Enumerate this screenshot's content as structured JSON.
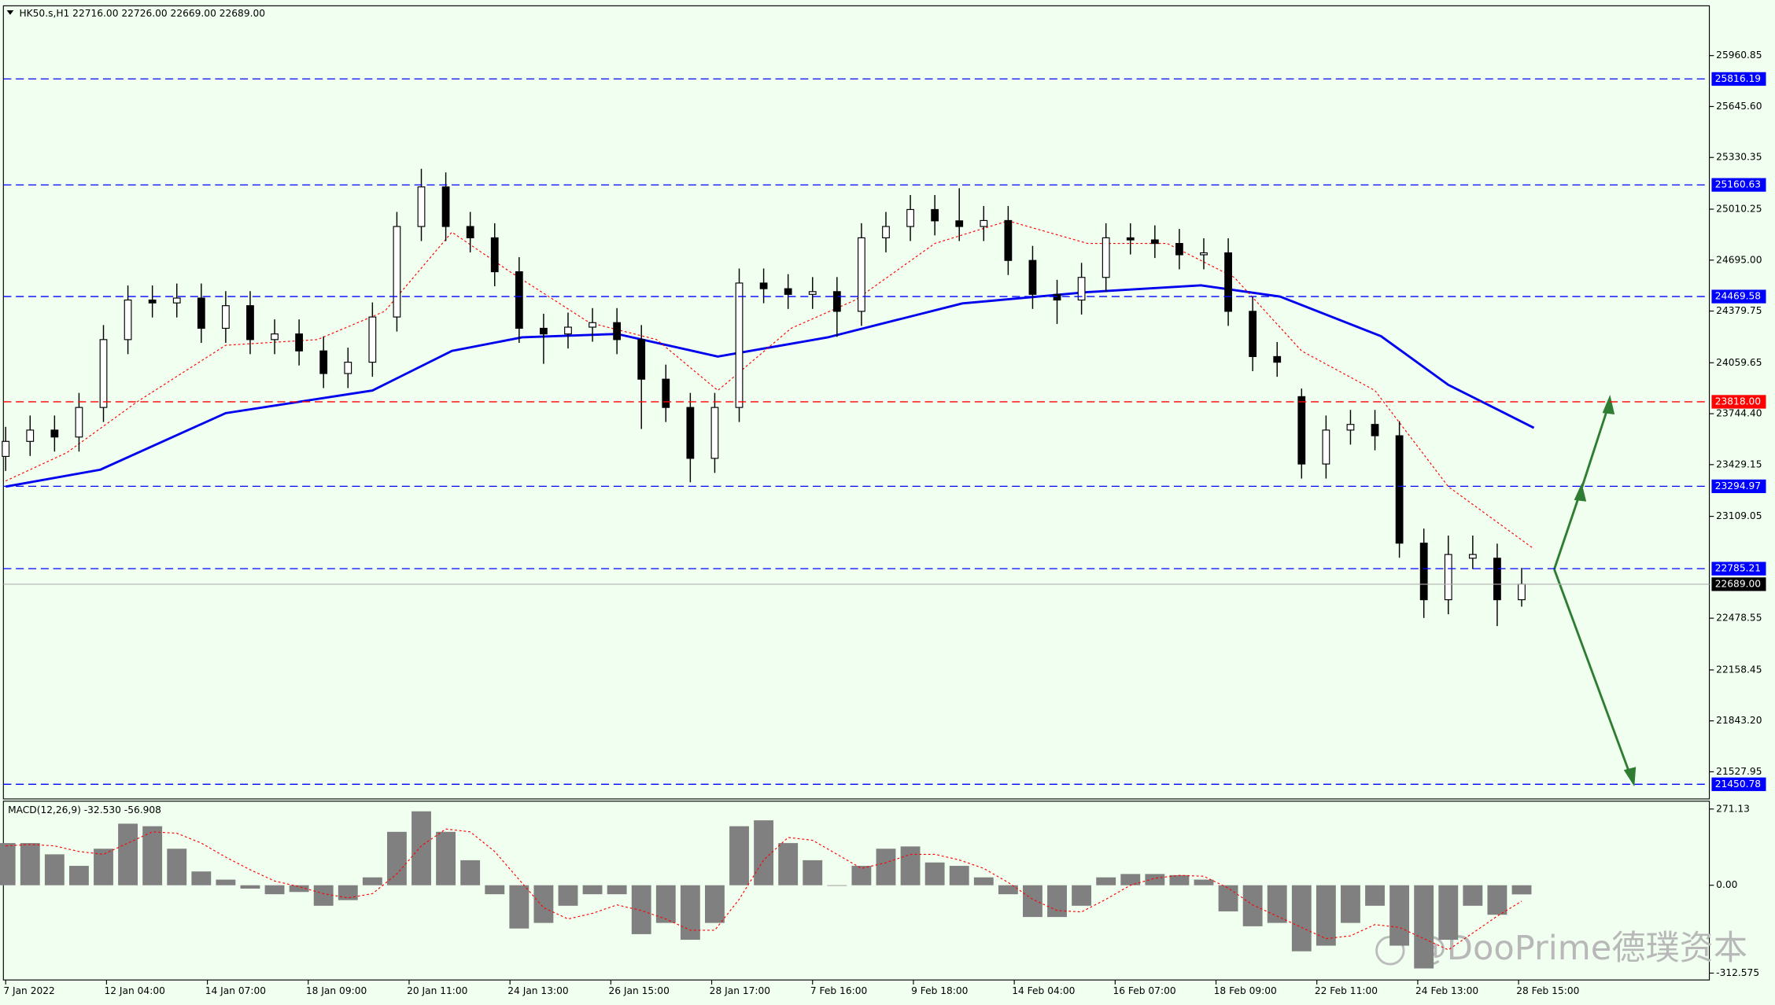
{
  "chart_data": [
    {
      "type": "candlestick",
      "title": "HK50.s,H1  22716.00 22726.00 22669.00 22689.00",
      "xlim": [
        0,
        500
      ],
      "ylim": [
        21360,
        26269
      ],
      "yticks": [
        25960.85,
        {
          "value": 25645.6,
          "label": "25645.60"
        },
        25330.35,
        25010.25,
        {
          "value": 24695,
          "label": "24695.00"
        },
        24379.75,
        24059.65,
        {
          "value": 23744.4,
          "label": "23744.40"
        },
        23429.15,
        23109.05,
        22478.55,
        22158.45,
        {
          "value": 21843.2,
          "label": "21843.20"
        },
        21527.95
      ],
      "grid": false,
      "x": [
        0,
        8,
        16,
        24,
        32,
        40,
        48,
        56,
        64,
        72,
        80,
        88,
        96,
        104,
        112,
        120,
        128,
        136,
        144,
        152,
        160,
        168,
        176,
        184,
        192,
        200,
        208,
        216,
        224,
        232,
        240,
        248,
        256,
        264,
        272,
        280,
        288,
        296,
        304,
        312,
        320,
        328,
        336,
        344,
        352,
        360,
        368,
        376,
        384,
        392,
        400,
        408,
        416,
        424,
        432,
        440,
        448,
        456,
        464,
        472,
        480,
        488,
        496
      ],
      "open": [
        23480,
        23573,
        23643,
        23600,
        23783,
        24203,
        24448,
        24430,
        24460,
        24273,
        24413,
        24203,
        24238,
        24133,
        23993,
        24063,
        24343,
        24903,
        25148,
        24903,
        24833,
        24623,
        24273,
        24238,
        24280,
        24308,
        24203,
        23958,
        23783,
        23468,
        23783,
        24553,
        24518,
        24483,
        24500,
        24378,
        24833,
        24903,
        25008,
        24938,
        24903,
        24940,
        24693,
        24483,
        24448,
        24588,
        24833,
        24820,
        24798,
        24728,
        24740,
        24378,
        24098,
        23850,
        23433,
        23643,
        23678,
        23608,
        22943,
        22593,
        22850,
        22850,
        22593
      ],
      "high": [
        23663,
        23733,
        23733,
        23873,
        24293,
        24538,
        24538,
        24550,
        24550,
        24503,
        24503,
        24328,
        24328,
        24223,
        24153,
        24433,
        24993,
        25260,
        25238,
        24993,
        24923,
        24713,
        24363,
        24370,
        24398,
        24398,
        24293,
        24048,
        23873,
        23873,
        24643,
        24643,
        24608,
        24590,
        24590,
        24923,
        24993,
        25098,
        25098,
        25140,
        25030,
        25030,
        24783,
        24573,
        24678,
        24923,
        24923,
        24910,
        24888,
        24830,
        24830,
        24468,
        24188,
        23900,
        23733,
        23768,
        23768,
        23698,
        23033,
        22990,
        22990,
        22940,
        22790
      ],
      "low": [
        23390,
        23483,
        23510,
        23510,
        23693,
        24113,
        24340,
        24340,
        24183,
        24183,
        24113,
        24113,
        24043,
        23903,
        23903,
        23973,
        24253,
        24813,
        24813,
        24743,
        24533,
        24183,
        24053,
        24148,
        24190,
        24113,
        23650,
        23693,
        23320,
        23378,
        23693,
        24428,
        24393,
        24393,
        24220,
        24288,
        24743,
        24813,
        24848,
        24813,
        24813,
        24603,
        24393,
        24300,
        24358,
        24498,
        24730,
        24708,
        24638,
        24638,
        24288,
        24008,
        23973,
        23343,
        23343,
        23553,
        23518,
        22853,
        22480,
        22503,
        22783,
        22430,
        22550
      ],
      "close": [
        23573,
        23643,
        23600,
        23783,
        24203,
        24448,
        24430,
        24460,
        24273,
        24413,
        24203,
        24238,
        24133,
        23993,
        24063,
        24343,
        24903,
        25148,
        24903,
        24833,
        24623,
        24273,
        24238,
        24280,
        24308,
        24203,
        23958,
        23783,
        23468,
        23783,
        24553,
        24518,
        24483,
        24500,
        24378,
        24833,
        24903,
        25008,
        24938,
        24903,
        24940,
        24693,
        24483,
        24448,
        24588,
        24833,
        24820,
        24798,
        24728,
        24740,
        24378,
        24098,
        24063,
        23433,
        23643,
        23678,
        23608,
        22943,
        22593,
        22873,
        22873,
        22593,
        22689
      ],
      "ma_lines": [
        {
          "color": "#0000ee",
          "width": 2,
          "dashed": false,
          "x": [
            0,
            31,
            72,
            120,
            146,
            169,
            200,
            233,
            269,
            313,
            354,
            391,
            417,
            450,
            472,
            500
          ],
          "values": [
            23293,
            23398,
            23748,
            23888,
            24133,
            24217,
            24238,
            24098,
            24217,
            24427,
            24497,
            24539,
            24469,
            24224,
            23923,
            23657
          ]
        },
        {
          "color": "#ff0000",
          "width": 0.8,
          "dashed": true,
          "x": [
            0,
            20,
            43,
            72,
            102,
            124,
            146,
            165,
            191,
            213,
            233,
            257,
            278,
            304,
            328,
            354,
            380,
            402,
            424,
            448,
            472,
            500
          ],
          "values": [
            23328,
            23503,
            23818,
            24168,
            24203,
            24378,
            24868,
            24623,
            24308,
            24203,
            23888,
            24273,
            24448,
            24798,
            24938,
            24798,
            24798,
            24588,
            24133,
            23888,
            23293,
            22908
          ]
        }
      ],
      "levels": [
        {
          "value": 25816.19,
          "color": "#0000ff"
        },
        {
          "value": 25160.63,
          "color": "#0000ff"
        },
        {
          "value": 24469.58,
          "color": "#0000ff"
        },
        {
          "value": 23818,
          "label": "23818.00",
          "color": "#ff0000"
        },
        {
          "value": 23294.97,
          "color": "#0000ff"
        },
        {
          "value": 22785.21,
          "color": "#0000ff"
        },
        {
          "value": 21450.78,
          "color": "#0000ff"
        }
      ],
      "last": {
        "value": 22689,
        "label": "22689.00",
        "color": "#000000"
      }
    },
    {
      "type": "bar",
      "title": "MACD(12,26,9) -32.530 -56.908",
      "xlim": [
        0,
        500
      ],
      "ylim": [
        -337,
        299
      ],
      "yticks": [
        271.13,
        {
          "value": 0,
          "label": "0.00"
        },
        -312.575
      ],
      "xticks": [
        {
          "value": 0,
          "label": "7 Jan 2022"
        },
        {
          "value": 33,
          "label": "12 Jan 04:00"
        },
        {
          "value": 66,
          "label": "14 Jan 07:00"
        },
        {
          "value": 99,
          "label": "18 Jan 09:00"
        },
        {
          "value": 132,
          "label": "20 Jan 11:00"
        },
        {
          "value": 165,
          "label": "24 Jan 13:00"
        },
        {
          "value": 198,
          "label": "26 Jan 15:00"
        },
        {
          "value": 231,
          "label": "28 Jan 17:00"
        },
        {
          "value": 264,
          "label": "7 Feb 16:00"
        },
        {
          "value": 297,
          "label": "9 Feb 18:00"
        },
        {
          "value": 330,
          "label": "14 Feb 04:00"
        },
        {
          "value": 363,
          "label": "16 Feb 07:00"
        },
        {
          "value": 396,
          "label": "18 Feb 09:00"
        },
        {
          "value": 429,
          "label": "22 Feb 11:00"
        },
        {
          "value": 462,
          "label": "24 Feb 13:00"
        },
        {
          "value": 495,
          "label": "28 Feb 15:00"
        }
      ],
      "x": [
        0,
        8,
        16,
        24,
        32,
        40,
        48,
        56,
        64,
        72,
        80,
        88,
        96,
        104,
        112,
        120,
        128,
        136,
        144,
        152,
        160,
        168,
        176,
        184,
        192,
        200,
        208,
        216,
        224,
        232,
        240,
        248,
        256,
        264,
        272,
        280,
        288,
        296,
        304,
        312,
        320,
        328,
        336,
        344,
        352,
        360,
        368,
        376,
        384,
        392,
        400,
        408,
        416,
        424,
        432,
        440,
        448,
        456,
        464,
        472,
        480,
        488,
        496
      ],
      "values": [
        150,
        150,
        110,
        69,
        130,
        219,
        210,
        130,
        49,
        20,
        -12,
        -32,
        -24,
        -73,
        -53,
        28,
        190,
        263,
        190,
        89,
        -32,
        -154,
        -134,
        -73,
        -32,
        -32,
        -174,
        -134,
        -194,
        -134,
        210,
        231,
        150,
        89,
        0,
        69,
        130,
        138,
        81,
        69,
        28,
        -32,
        -113,
        -113,
        -73,
        28,
        40,
        40,
        36,
        20,
        -93,
        -146,
        -134,
        -235,
        -215,
        -134,
        -73,
        -215,
        -296,
        -194,
        -73,
        -105,
        -32.53
      ],
      "color": "#808080",
      "signal": [
        140,
        145,
        140,
        120,
        110,
        150,
        190,
        185,
        150,
        100,
        55,
        15,
        -5,
        -30,
        -45,
        -30,
        40,
        140,
        200,
        190,
        120,
        20,
        -80,
        -120,
        -100,
        -70,
        -90,
        -120,
        -160,
        -160,
        -50,
        90,
        170,
        160,
        110,
        60,
        80,
        110,
        110,
        90,
        60,
        10,
        -50,
        -90,
        -95,
        -50,
        0,
        25,
        35,
        32,
        -10,
        -70,
        -110,
        -150,
        -190,
        -180,
        -140,
        -150,
        -190,
        -230,
        -170,
        -110,
        -56.908
      ],
      "signal_color": "#ff0000"
    }
  ],
  "watermark": "@DooPrime德璞资本"
}
